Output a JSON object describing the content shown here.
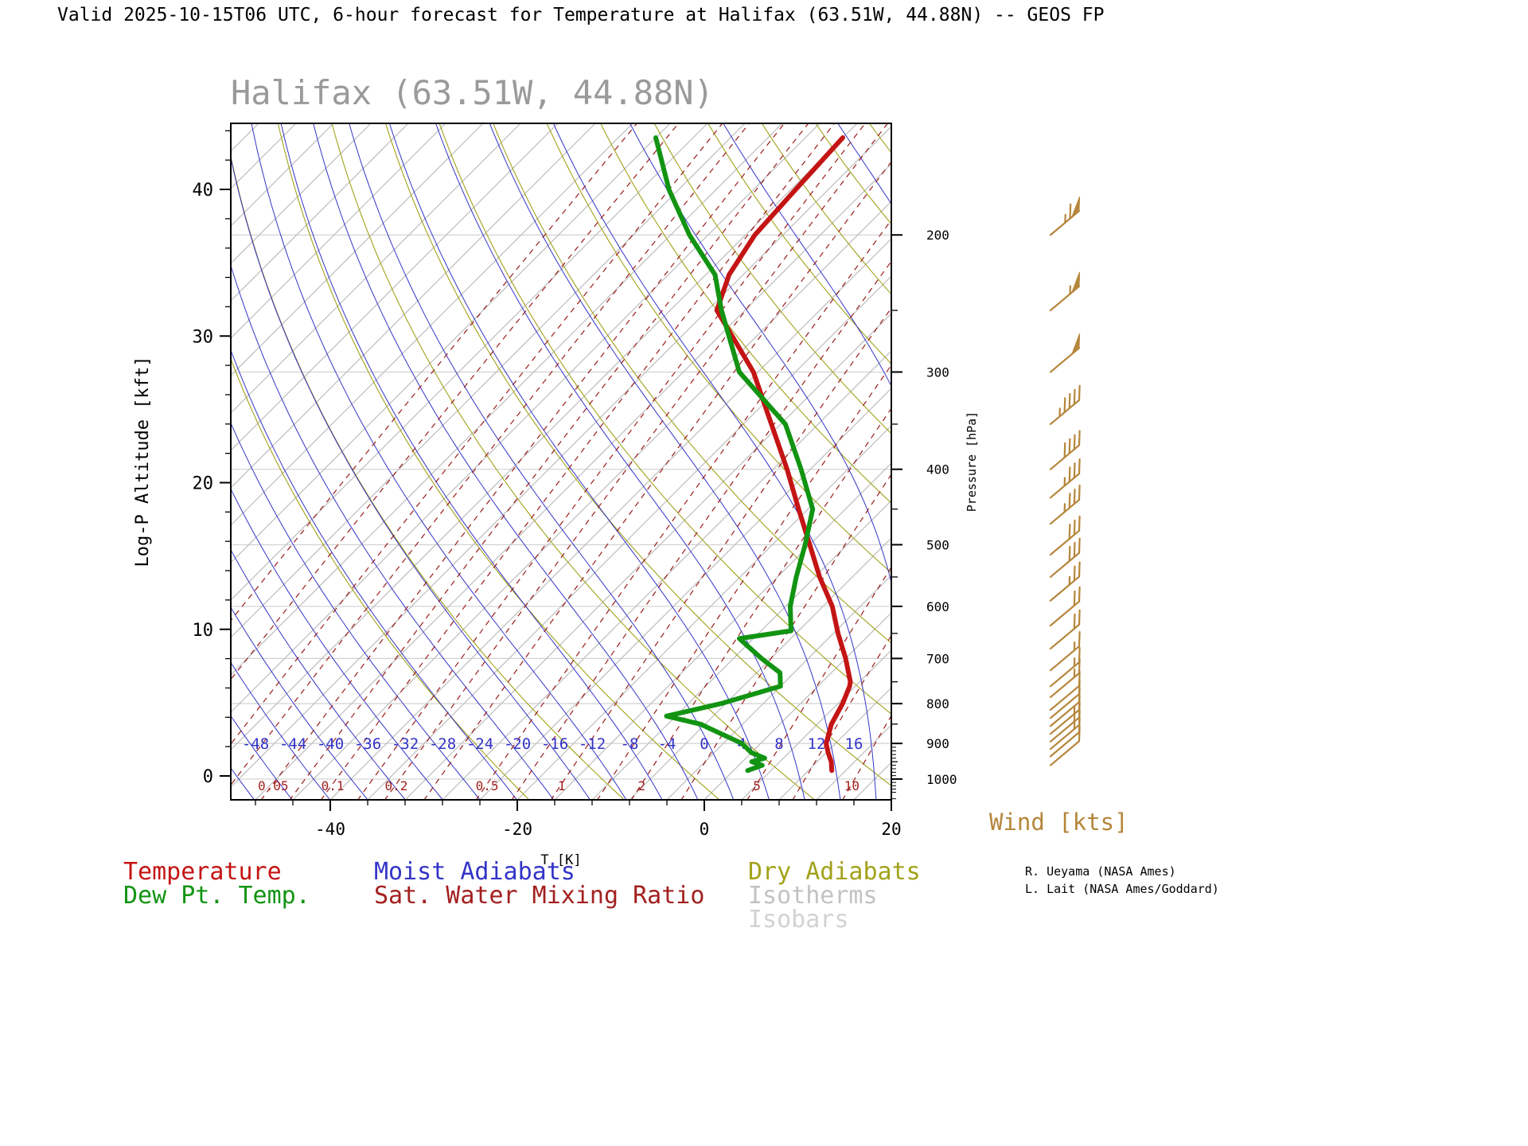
{
  "header": {
    "title": "Valid 2025-10-15T06 UTC, 6-hour forecast for Temperature at Halifax (63.51W, 44.88N) -- GEOS FP"
  },
  "chart_title": "Halifax (63.51W, 44.88N)",
  "axes": {
    "y_left": {
      "label": "Log-P Altitude [kft]",
      "ticks": [
        0,
        10,
        20,
        30,
        40
      ]
    },
    "y_right": {
      "label": "Pressure [hPa]",
      "ticks": [
        200,
        300,
        400,
        500,
        600,
        700,
        800,
        900,
        1000
      ]
    },
    "x_bottom": {
      "label": "T [K]",
      "ticks": [
        -40,
        -20,
        0,
        20
      ]
    }
  },
  "legend": {
    "items": [
      {
        "label": "Temperature",
        "color": "#c41414"
      },
      {
        "label": "Dew Pt. Temp.",
        "color": "#129412"
      },
      {
        "label": "Moist Adiabats",
        "color": "#3434c8"
      },
      {
        "label": "Sat. Water Mixing Ratio",
        "color": "#a32020"
      },
      {
        "label": "Dry Adiabats",
        "color": "#a2a21a"
      },
      {
        "label": "Isotherms",
        "color": "#c2c2c2"
      },
      {
        "label": "Isobars",
        "color": "#d2d2d2"
      }
    ]
  },
  "wind": {
    "label": "Wind [kts]",
    "color": "#b5863b"
  },
  "credits": {
    "line1": "R. Ueyama (NASA Ames)",
    "line2": "L. Lait (NASA Ames/Goddard)"
  },
  "chart_data": {
    "type": "line",
    "title": "Halifax (63.51W, 44.88N)",
    "x_axis_label": "T [K]",
    "y_axis_left_label": "Log-P Altitude [kft]",
    "y_axis_right_label": "Pressure [hPa]",
    "altitude_ticks_kft": [
      0,
      10,
      20,
      30,
      40
    ],
    "pressure_ticks_hPa": [
      200,
      300,
      400,
      500,
      600,
      700,
      800,
      900,
      1000
    ],
    "temp_ticks": [
      -40,
      -20,
      0,
      20
    ],
    "series": [
      {
        "name": "Temperature",
        "color": "#c41414",
        "points_p_hPa_T_C": [
          [
            975,
            10.5
          ],
          [
            950,
            9.5
          ],
          [
            925,
            8.2
          ],
          [
            900,
            7.0
          ],
          [
            850,
            5.5
          ],
          [
            800,
            4.5
          ],
          [
            760,
            3.4
          ],
          [
            750,
            3.0
          ],
          [
            700,
            0.0
          ],
          [
            650,
            -3.5
          ],
          [
            600,
            -7.0
          ],
          [
            550,
            -11.5
          ],
          [
            500,
            -16.0
          ],
          [
            450,
            -21.0
          ],
          [
            400,
            -26.5
          ],
          [
            350,
            -33.0
          ],
          [
            300,
            -40.5
          ],
          [
            275,
            -45.5
          ],
          [
            250,
            -51.0
          ],
          [
            225,
            -53.5
          ],
          [
            200,
            -55.0
          ],
          [
            175,
            -55.5
          ],
          [
            150,
            -56.0
          ]
        ]
      },
      {
        "name": "Dew Pt. Temp.",
        "color": "#129412",
        "points_p_hPa_T_C": [
          [
            975,
            1.5
          ],
          [
            960,
            2.5
          ],
          [
            950,
            1.0
          ],
          [
            940,
            2.0
          ],
          [
            925,
            0.0
          ],
          [
            900,
            -2.0
          ],
          [
            850,
            -8.5
          ],
          [
            830,
            -13.0
          ],
          [
            800,
            -8.5
          ],
          [
            760,
            -4.0
          ],
          [
            730,
            -5.5
          ],
          [
            700,
            -9.0
          ],
          [
            660,
            -13.5
          ],
          [
            645,
            -8.8
          ],
          [
            600,
            -11.5
          ],
          [
            550,
            -14.0
          ],
          [
            500,
            -16.5
          ],
          [
            450,
            -19.5
          ],
          [
            400,
            -25.0
          ],
          [
            350,
            -31.5
          ],
          [
            300,
            -42.0
          ],
          [
            250,
            -50.5
          ],
          [
            225,
            -55.0
          ],
          [
            200,
            -62.0
          ],
          [
            175,
            -69.0
          ],
          [
            150,
            -76.0
          ]
        ]
      }
    ],
    "wind_barbs_p_hPa_kts": [
      [
        200,
        65
      ],
      [
        250,
        55
      ],
      [
        300,
        50
      ],
      [
        350,
        45
      ],
      [
        400,
        40
      ],
      [
        435,
        35
      ],
      [
        470,
        35
      ],
      [
        515,
        30
      ],
      [
        550,
        30
      ],
      [
        590,
        25
      ],
      [
        635,
        20
      ],
      [
        680,
        20
      ],
      [
        725,
        15
      ],
      [
        760,
        15
      ],
      [
        785,
        15
      ],
      [
        815,
        10
      ],
      [
        835,
        10
      ],
      [
        855,
        10
      ],
      [
        875,
        15
      ],
      [
        895,
        15
      ],
      [
        915,
        15
      ],
      [
        935,
        10
      ],
      [
        960,
        10
      ]
    ],
    "background_lines": {
      "isobars_hPa": [
        200,
        300,
        400,
        500,
        600,
        700,
        800,
        900,
        1000
      ],
      "isotherms_C": {
        "min": -124,
        "max": 40,
        "step": 4
      },
      "dry_adiabats_theta_K": {
        "min": 250,
        "max": 450,
        "step": 10
      },
      "moist_adiabats_C": {
        "min": -64,
        "max": 36,
        "step": 4
      },
      "moist_adiabat_inline_labels_C": [
        -48,
        -44,
        -40,
        -36,
        -32,
        -28,
        -24,
        -20,
        -16,
        -12,
        -8,
        -4,
        0,
        4,
        8,
        12,
        16
      ],
      "mixing_ratio_labeled_g_kg": [
        0.05,
        0.1,
        0.2,
        0.5,
        1,
        2,
        5,
        10
      ],
      "mixing_ratio_unlabeled_g_kg": [
        0.005,
        0.01,
        0.02,
        0.03,
        0.07,
        0.15,
        0.3,
        0.7,
        1.5,
        3,
        7,
        15,
        20,
        30
      ]
    }
  }
}
